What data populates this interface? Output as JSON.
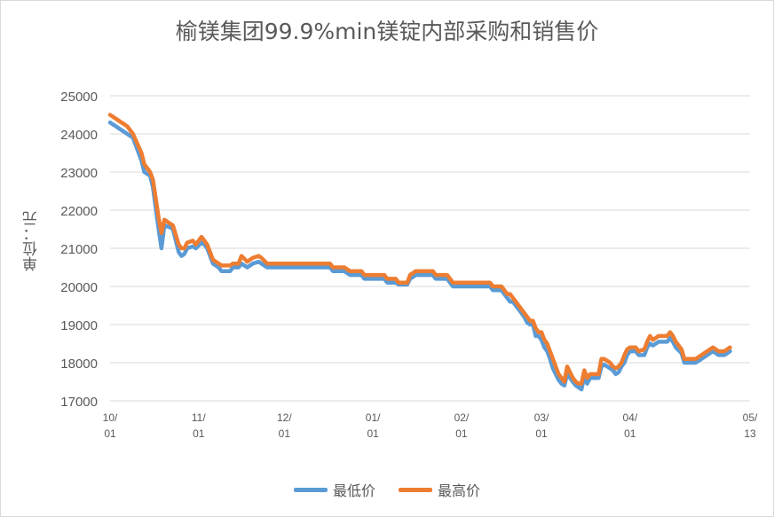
{
  "chart_data": {
    "type": "line",
    "title": "榆镁集团99.9%min镁锭内部采购和销售价",
    "xlabel": "",
    "ylabel": "单位：元",
    "ylim": [
      17000,
      25000
    ],
    "yticks": [
      17000,
      18000,
      19000,
      20000,
      21000,
      22000,
      23000,
      24000,
      25000
    ],
    "grid": true,
    "legend_position": "bottom",
    "x_tick_labels": [
      {
        "top": "10/",
        "bottom": "01",
        "index": 0
      },
      {
        "top": "11/",
        "bottom": "01",
        "index": 31
      },
      {
        "top": "12/",
        "bottom": "01",
        "index": 61
      },
      {
        "top": "01/",
        "bottom": "01",
        "index": 92
      },
      {
        "top": "02/",
        "bottom": "01",
        "index": 123
      },
      {
        "top": "03/",
        "bottom": "01",
        "index": 151
      },
      {
        "top": "04/",
        "bottom": "01",
        "index": 182
      },
      {
        "top": "05/",
        "bottom": "13",
        "index": 224
      }
    ],
    "n_points": 225,
    "series": [
      {
        "name": "最低价",
        "color": "#5b9bd5",
        "points": [
          [
            0,
            24300
          ],
          [
            6,
            24000
          ],
          [
            8,
            23900
          ],
          [
            11,
            23300
          ],
          [
            12,
            23000
          ],
          [
            14,
            22900
          ],
          [
            15,
            22600
          ],
          [
            17,
            21500
          ],
          [
            18,
            21000
          ],
          [
            19,
            21600
          ],
          [
            21,
            21550
          ],
          [
            22,
            21500
          ],
          [
            24,
            20900
          ],
          [
            25,
            20800
          ],
          [
            26,
            20850
          ],
          [
            27,
            21000
          ],
          [
            29,
            21050
          ],
          [
            30,
            21000
          ],
          [
            32,
            21150
          ],
          [
            33,
            21100
          ],
          [
            34,
            21000
          ],
          [
            36,
            20600
          ],
          [
            38,
            20500
          ],
          [
            39,
            20400
          ],
          [
            42,
            20400
          ],
          [
            43,
            20500
          ],
          [
            45,
            20500
          ],
          [
            46,
            20600
          ],
          [
            48,
            20500
          ],
          [
            50,
            20600
          ],
          [
            52,
            20650
          ],
          [
            53,
            20600
          ],
          [
            55,
            20500
          ],
          [
            77,
            20500
          ],
          [
            78,
            20400
          ],
          [
            82,
            20400
          ],
          [
            84,
            20300
          ],
          [
            88,
            20300
          ],
          [
            89,
            20200
          ],
          [
            96,
            20200
          ],
          [
            97,
            20100
          ],
          [
            100,
            20100
          ],
          [
            101,
            20050
          ],
          [
            104,
            20050
          ],
          [
            105,
            20200
          ],
          [
            107,
            20300
          ],
          [
            113,
            20300
          ],
          [
            114,
            20200
          ],
          [
            118,
            20200
          ],
          [
            119,
            20100
          ],
          [
            120,
            20000
          ],
          [
            133,
            20000
          ],
          [
            134,
            19900
          ],
          [
            137,
            19900
          ],
          [
            139,
            19700
          ],
          [
            140,
            19600
          ],
          [
            141,
            19600
          ],
          [
            142,
            19500
          ],
          [
            143,
            19400
          ],
          [
            145,
            19200
          ],
          [
            146,
            19050
          ],
          [
            147,
            19000
          ],
          [
            148,
            19000
          ],
          [
            149,
            18700
          ],
          [
            150,
            18700
          ],
          [
            151,
            18600
          ],
          [
            152,
            18400
          ],
          [
            153,
            18300
          ],
          [
            154,
            18100
          ],
          [
            155,
            17850
          ],
          [
            157,
            17550
          ],
          [
            158,
            17450
          ],
          [
            159,
            17400
          ],
          [
            160,
            17700
          ],
          [
            161,
            17600
          ],
          [
            162,
            17500
          ],
          [
            163,
            17400
          ],
          [
            164,
            17350
          ],
          [
            165,
            17300
          ],
          [
            166,
            17650
          ],
          [
            167,
            17450
          ],
          [
            168,
            17600
          ],
          [
            171,
            17600
          ],
          [
            172,
            17900
          ],
          [
            173,
            17950
          ],
          [
            174,
            17900
          ],
          [
            175,
            17850
          ],
          [
            176,
            17800
          ],
          [
            177,
            17700
          ],
          [
            178,
            17750
          ],
          [
            179,
            17900
          ],
          [
            180,
            18000
          ],
          [
            181,
            18200
          ],
          [
            182,
            18300
          ],
          [
            184,
            18300
          ],
          [
            185,
            18200
          ],
          [
            187,
            18200
          ],
          [
            188,
            18400
          ],
          [
            189,
            18500
          ],
          [
            190,
            18450
          ],
          [
            192,
            18550
          ],
          [
            195,
            18550
          ],
          [
            196,
            18650
          ],
          [
            197,
            18550
          ],
          [
            198,
            18400
          ],
          [
            200,
            18250
          ],
          [
            201,
            18000
          ],
          [
            205,
            18000
          ],
          [
            207,
            18100
          ],
          [
            209,
            18200
          ],
          [
            211,
            18300
          ],
          [
            212,
            18250
          ],
          [
            213,
            18200
          ],
          [
            214,
            18200
          ],
          [
            215,
            18200
          ],
          [
            216,
            18250
          ],
          [
            217,
            18300
          ]
        ]
      },
      {
        "name": "最高价",
        "color": "#ed7d31",
        "points": [
          [
            0,
            24500
          ],
          [
            6,
            24200
          ],
          [
            8,
            24000
          ],
          [
            11,
            23500
          ],
          [
            12,
            23200
          ],
          [
            14,
            23000
          ],
          [
            15,
            22800
          ],
          [
            17,
            21800
          ],
          [
            18,
            21400
          ],
          [
            19,
            21750
          ],
          [
            21,
            21650
          ],
          [
            22,
            21600
          ],
          [
            24,
            21100
          ],
          [
            25,
            21000
          ],
          [
            26,
            21000
          ],
          [
            27,
            21150
          ],
          [
            29,
            21200
          ],
          [
            30,
            21100
          ],
          [
            32,
            21300
          ],
          [
            33,
            21200
          ],
          [
            34,
            21100
          ],
          [
            36,
            20700
          ],
          [
            38,
            20600
          ],
          [
            39,
            20550
          ],
          [
            42,
            20550
          ],
          [
            43,
            20600
          ],
          [
            45,
            20600
          ],
          [
            46,
            20800
          ],
          [
            48,
            20650
          ],
          [
            50,
            20750
          ],
          [
            52,
            20800
          ],
          [
            53,
            20750
          ],
          [
            55,
            20600
          ],
          [
            77,
            20600
          ],
          [
            78,
            20500
          ],
          [
            82,
            20500
          ],
          [
            84,
            20400
          ],
          [
            88,
            20400
          ],
          [
            89,
            20300
          ],
          [
            96,
            20300
          ],
          [
            97,
            20200
          ],
          [
            100,
            20200
          ],
          [
            101,
            20100
          ],
          [
            104,
            20100
          ],
          [
            105,
            20300
          ],
          [
            107,
            20400
          ],
          [
            113,
            20400
          ],
          [
            114,
            20300
          ],
          [
            118,
            20300
          ],
          [
            119,
            20200
          ],
          [
            120,
            20100
          ],
          [
            133,
            20100
          ],
          [
            134,
            20000
          ],
          [
            137,
            20000
          ],
          [
            139,
            19800
          ],
          [
            140,
            19800
          ],
          [
            141,
            19700
          ],
          [
            142,
            19600
          ],
          [
            143,
            19500
          ],
          [
            145,
            19300
          ],
          [
            146,
            19200
          ],
          [
            147,
            19100
          ],
          [
            148,
            19100
          ],
          [
            149,
            18900
          ],
          [
            150,
            18800
          ],
          [
            151,
            18800
          ],
          [
            152,
            18600
          ],
          [
            153,
            18500
          ],
          [
            154,
            18300
          ],
          [
            155,
            18100
          ],
          [
            157,
            17700
          ],
          [
            158,
            17600
          ],
          [
            159,
            17500
          ],
          [
            160,
            17900
          ],
          [
            161,
            17750
          ],
          [
            162,
            17600
          ],
          [
            163,
            17500
          ],
          [
            164,
            17450
          ],
          [
            165,
            17450
          ],
          [
            166,
            17800
          ],
          [
            167,
            17600
          ],
          [
            168,
            17700
          ],
          [
            171,
            17700
          ],
          [
            172,
            18100
          ],
          [
            173,
            18100
          ],
          [
            174,
            18050
          ],
          [
            175,
            18000
          ],
          [
            176,
            17900
          ],
          [
            177,
            17850
          ],
          [
            178,
            17900
          ],
          [
            179,
            18000
          ],
          [
            180,
            18200
          ],
          [
            181,
            18350
          ],
          [
            182,
            18400
          ],
          [
            184,
            18400
          ],
          [
            185,
            18300
          ],
          [
            187,
            18350
          ],
          [
            188,
            18550
          ],
          [
            189,
            18700
          ],
          [
            190,
            18600
          ],
          [
            192,
            18700
          ],
          [
            195,
            18700
          ],
          [
            196,
            18800
          ],
          [
            197,
            18700
          ],
          [
            198,
            18550
          ],
          [
            200,
            18350
          ],
          [
            201,
            18100
          ],
          [
            205,
            18100
          ],
          [
            207,
            18200
          ],
          [
            209,
            18300
          ],
          [
            211,
            18400
          ],
          [
            212,
            18350
          ],
          [
            213,
            18300
          ],
          [
            214,
            18300
          ],
          [
            215,
            18300
          ],
          [
            216,
            18350
          ],
          [
            217,
            18400
          ]
        ]
      }
    ]
  }
}
